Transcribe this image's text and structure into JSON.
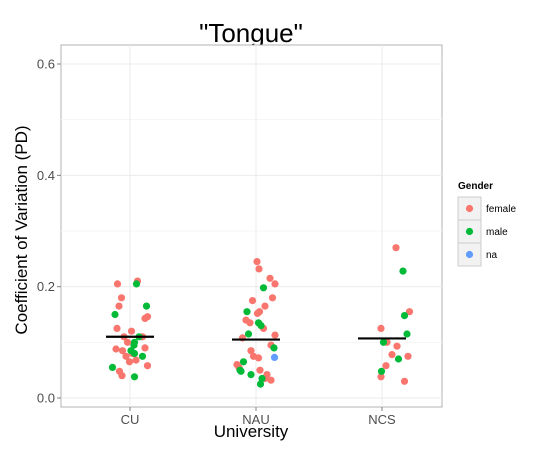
{
  "chart_data": {
    "type": "scatter",
    "title": "\"Tongue\"",
    "xlabel": "University",
    "ylabel": "Coefficient of Variation (PD)",
    "categories": [
      "CU",
      "NAU",
      "NCS"
    ],
    "ylim": [
      0,
      0.62
    ],
    "yticks": [
      "0.0",
      "0.2",
      "0.4",
      "0.6"
    ],
    "ytick_values": [
      0,
      0.2,
      0.4,
      0.6
    ],
    "grid": true,
    "legend": {
      "title": "Gender",
      "position": "right"
    },
    "colors": {
      "female": "#F8766D",
      "male": "#00BA38",
      "na": "#619CFF",
      "median": "#000000",
      "grid": "#ebebeb",
      "border": "#b3b3b3"
    },
    "series": [
      {
        "name": "female",
        "color": "#F8766D",
        "points": [
          [
            "CU",
            0.205,
            -0.25
          ],
          [
            "CU",
            0.21,
            0.15
          ],
          [
            "CU",
            0.18,
            -0.17
          ],
          [
            "CU",
            0.165,
            -0.22
          ],
          [
            "CU",
            0.146,
            0.35
          ],
          [
            "CU",
            0.143,
            0.3
          ],
          [
            "CU",
            0.125,
            -0.26
          ],
          [
            "CU",
            0.12,
            0.03
          ],
          [
            "CU",
            0.11,
            -0.12
          ],
          [
            "CU",
            0.11,
            0.25
          ],
          [
            "CU",
            0.1,
            -0.05
          ],
          [
            "CU",
            0.09,
            0.3
          ],
          [
            "CU",
            0.088,
            -0.28
          ],
          [
            "CU",
            0.085,
            -0.15
          ],
          [
            "CU",
            0.08,
            0.05
          ],
          [
            "CU",
            0.075,
            -0.08
          ],
          [
            "CU",
            0.068,
            0.12
          ],
          [
            "CU",
            0.065,
            -0.01
          ],
          [
            "CU",
            0.058,
            0.35
          ],
          [
            "CU",
            0.048,
            -0.21
          ],
          [
            "CU",
            0.04,
            -0.16
          ],
          [
            "NAU",
            0.245,
            0.02
          ],
          [
            "NAU",
            0.232,
            0.06
          ],
          [
            "NAU",
            0.215,
            0.28
          ],
          [
            "NAU",
            0.205,
            0.38
          ],
          [
            "NAU",
            0.18,
            0.33
          ],
          [
            "NAU",
            0.175,
            -0.07
          ],
          [
            "NAU",
            0.165,
            0.18
          ],
          [
            "NAU",
            0.155,
            0.07
          ],
          [
            "NAU",
            0.152,
            0.03
          ],
          [
            "NAU",
            0.14,
            -0.2
          ],
          [
            "NAU",
            0.135,
            -0.12
          ],
          [
            "NAU",
            0.125,
            0.15
          ],
          [
            "NAU",
            0.113,
            0.38
          ],
          [
            "NAU",
            0.108,
            -0.27
          ],
          [
            "NAU",
            0.095,
            0.3
          ],
          [
            "NAU",
            0.085,
            -0.1
          ],
          [
            "NAU",
            0.075,
            -0.05
          ],
          [
            "NAU",
            0.072,
            0.05
          ],
          [
            "NAU",
            0.06,
            -0.38
          ],
          [
            "NAU",
            0.055,
            -0.34
          ],
          [
            "NAU",
            0.05,
            0.08
          ],
          [
            "NAU",
            0.042,
            0.22
          ],
          [
            "NAU",
            0.035,
            0.18
          ],
          [
            "NAU",
            0.032,
            0.3
          ],
          [
            "NCS",
            0.27,
            0.28
          ],
          [
            "NCS",
            0.155,
            0.55
          ],
          [
            "NCS",
            0.125,
            -0.02
          ],
          [
            "NCS",
            0.1,
            0.1
          ],
          [
            "NCS",
            0.093,
            0.3
          ],
          [
            "NCS",
            0.078,
            0.2
          ],
          [
            "NCS",
            0.075,
            0.52
          ],
          [
            "NCS",
            0.058,
            0.08
          ],
          [
            "NCS",
            0.038,
            -0.02
          ],
          [
            "NCS",
            0.03,
            0.45
          ]
        ]
      },
      {
        "name": "male",
        "color": "#00BA38",
        "points": [
          [
            "CU",
            0.205,
            0.13
          ],
          [
            "CU",
            0.165,
            0.33
          ],
          [
            "CU",
            0.15,
            -0.3
          ],
          [
            "CU",
            0.11,
            0.18
          ],
          [
            "CU",
            0.1,
            0.09
          ],
          [
            "CU",
            0.095,
            0.08
          ],
          [
            "CU",
            0.085,
            0.02
          ],
          [
            "CU",
            0.08,
            0.09
          ],
          [
            "CU",
            0.075,
            0.25
          ],
          [
            "CU",
            0.055,
            -0.35
          ],
          [
            "CU",
            0.038,
            0.09
          ],
          [
            "NAU",
            0.198,
            0.15
          ],
          [
            "NAU",
            0.155,
            -0.18
          ],
          [
            "NAU",
            0.135,
            0.05
          ],
          [
            "NAU",
            0.13,
            0.1
          ],
          [
            "NAU",
            0.115,
            -0.15
          ],
          [
            "NAU",
            0.09,
            0.36
          ],
          [
            "NAU",
            0.065,
            -0.25
          ],
          [
            "NAU",
            0.05,
            -0.32
          ],
          [
            "NAU",
            0.048,
            -0.3
          ],
          [
            "NAU",
            0.042,
            -0.1
          ],
          [
            "NAU",
            0.035,
            0.12
          ],
          [
            "NAU",
            0.025,
            0.09
          ],
          [
            "NCS",
            0.228,
            0.42
          ],
          [
            "NCS",
            0.148,
            0.45
          ],
          [
            "NCS",
            0.115,
            0.5
          ],
          [
            "NCS",
            0.1,
            0.03
          ],
          [
            "NCS",
            0.07,
            0.33
          ],
          [
            "NCS",
            0.048,
            -0.01
          ]
        ]
      },
      {
        "name": "na",
        "color": "#619CFF",
        "points": [
          [
            "NAU",
            0.073,
            0.37
          ]
        ]
      }
    ],
    "medians": [
      {
        "category": "CU",
        "value": 0.11
      },
      {
        "category": "NAU",
        "value": 0.105
      },
      {
        "category": "NCS",
        "value": 0.107
      }
    ]
  }
}
